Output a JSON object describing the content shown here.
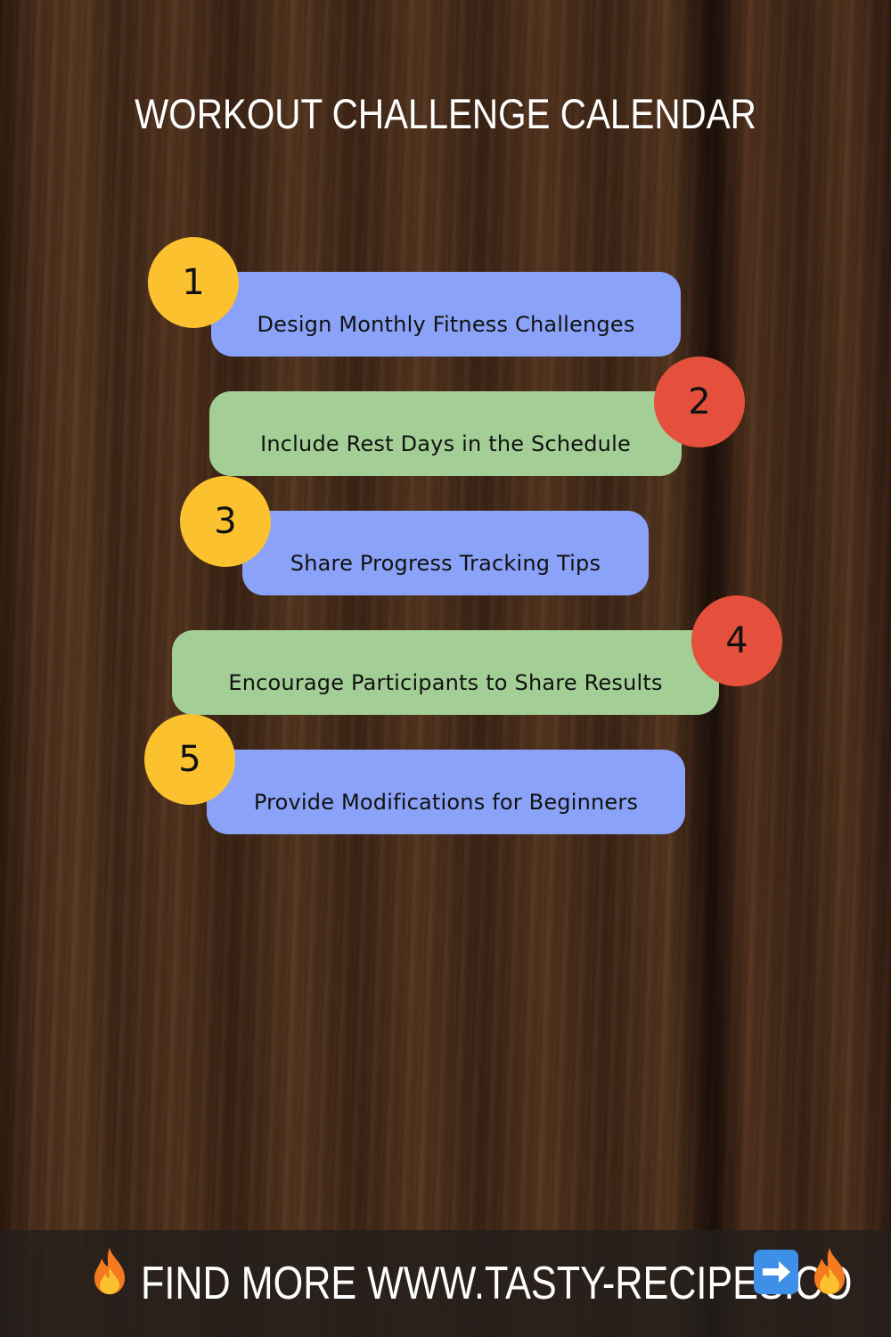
{
  "title": "WORKOUT CHALLENGE CALENDAR",
  "steps": [
    {
      "number": "1",
      "label": "Design Monthly Fitness Challenges"
    },
    {
      "number": "2",
      "label": "Include Rest Days in the Schedule"
    },
    {
      "number": "3",
      "label": "Share Progress Tracking Tips"
    },
    {
      "number": "4",
      "label": "Encourage Participants to Share Results"
    },
    {
      "number": "5",
      "label": "Provide Modifications for Beginners"
    }
  ],
  "footer": {
    "text": "FIND MORE WWW.TASTY-RECIPES.CO",
    "icons": [
      "fire-icon",
      "arrow-right-icon",
      "fire-icon"
    ]
  },
  "colors": {
    "card_blue": "#8aa3f8",
    "card_green": "#a3cf96",
    "badge_yellow": "#fbc12f",
    "badge_red": "#e5503c"
  }
}
